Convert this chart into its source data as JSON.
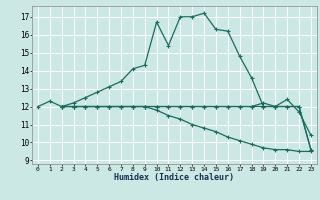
{
  "xlabel": "Humidex (Indice chaleur)",
  "background_color": "#cce8e4",
  "line_color": "#1a6b5e",
  "grid_color": "#ffffff",
  "xlim": [
    -0.5,
    23.5
  ],
  "ylim": [
    8.8,
    17.6
  ],
  "yticks": [
    9,
    10,
    11,
    12,
    13,
    14,
    15,
    16,
    17
  ],
  "xticks": [
    0,
    1,
    2,
    3,
    4,
    5,
    6,
    7,
    8,
    9,
    10,
    11,
    12,
    13,
    14,
    15,
    16,
    17,
    18,
    19,
    20,
    21,
    22,
    23
  ],
  "lines": [
    {
      "x": [
        0,
        1,
        2,
        3,
        4,
        5,
        6,
        7,
        8,
        9,
        10,
        11,
        12,
        13,
        14,
        15,
        16,
        17,
        18,
        19,
        20,
        21,
        22,
        23
      ],
      "y": [
        12.0,
        12.3,
        12.0,
        12.2,
        12.5,
        12.8,
        13.1,
        13.4,
        14.1,
        14.3,
        16.7,
        15.4,
        17.0,
        17.0,
        17.2,
        16.3,
        16.2,
        14.8,
        13.6,
        12.0,
        12.0,
        12.4,
        11.7,
        10.4
      ]
    },
    {
      "x": [
        2,
        3,
        4,
        5,
        6,
        7,
        8,
        9,
        10,
        11,
        12,
        13,
        14,
        15,
        16,
        17,
        18,
        19,
        20,
        21,
        22,
        23
      ],
      "y": [
        12.0,
        12.0,
        12.0,
        12.0,
        12.0,
        12.0,
        12.0,
        12.0,
        12.0,
        12.0,
        12.0,
        12.0,
        12.0,
        12.0,
        12.0,
        12.0,
        12.0,
        12.2,
        12.0,
        12.0,
        12.0,
        9.6
      ]
    },
    {
      "x": [
        2,
        3,
        4,
        5,
        6,
        7,
        8,
        9,
        10,
        11,
        12,
        13,
        14,
        15,
        16,
        17,
        18,
        19,
        20,
        21,
        22,
        23
      ],
      "y": [
        12.0,
        12.0,
        12.0,
        12.0,
        12.0,
        12.0,
        12.0,
        12.0,
        12.0,
        12.0,
        12.0,
        12.0,
        12.0,
        12.0,
        12.0,
        12.0,
        12.0,
        12.0,
        12.0,
        12.0,
        12.0,
        9.6
      ]
    },
    {
      "x": [
        2,
        3,
        4,
        5,
        6,
        7,
        8,
        9,
        10,
        11,
        12,
        13,
        14,
        15,
        16,
        17,
        18,
        19,
        20,
        21,
        22,
        23
      ],
      "y": [
        12.0,
        12.0,
        12.0,
        12.0,
        12.0,
        12.0,
        12.0,
        12.0,
        11.8,
        11.5,
        11.3,
        11.0,
        10.8,
        10.6,
        10.3,
        10.1,
        9.9,
        9.7,
        9.6,
        9.6,
        9.5,
        9.5
      ]
    }
  ]
}
